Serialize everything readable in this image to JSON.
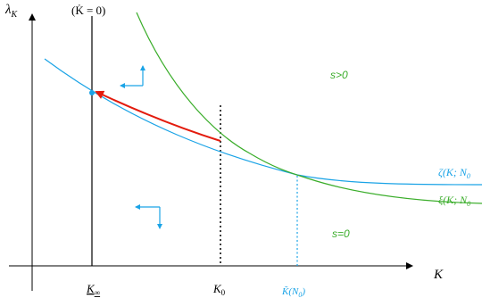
{
  "axes": {
    "y_label": "λ",
    "y_label_sub": "K",
    "x_label": "K"
  },
  "annotations": {
    "kdot_zero": "(K̇ = 0)",
    "region_upper": "s>0",
    "region_lower": "s=0"
  },
  "ticks": {
    "k_inf": "K",
    "k_inf_sub": "∞",
    "k0": "K",
    "k0_sub": "0",
    "k_tilde": "K̃(N",
    "k_tilde_sub": "0",
    "k_tilde_close": ")"
  },
  "curves": {
    "zeta_label": "ζ(K; N",
    "zeta_sub": "0",
    "xi_label": "ξ(K; N",
    "xi_sub": "0"
  },
  "colors": {
    "zeta": "#1aa3e6",
    "xi": "#3aad2a",
    "path": "#e31b0d",
    "axis": "#000000",
    "k_tilde_label": "#1aa3e6",
    "region_label": "#3aad2a"
  },
  "arrow_icons": [
    "up-left-arrow-icon",
    "down-left-arrow-icon"
  ]
}
